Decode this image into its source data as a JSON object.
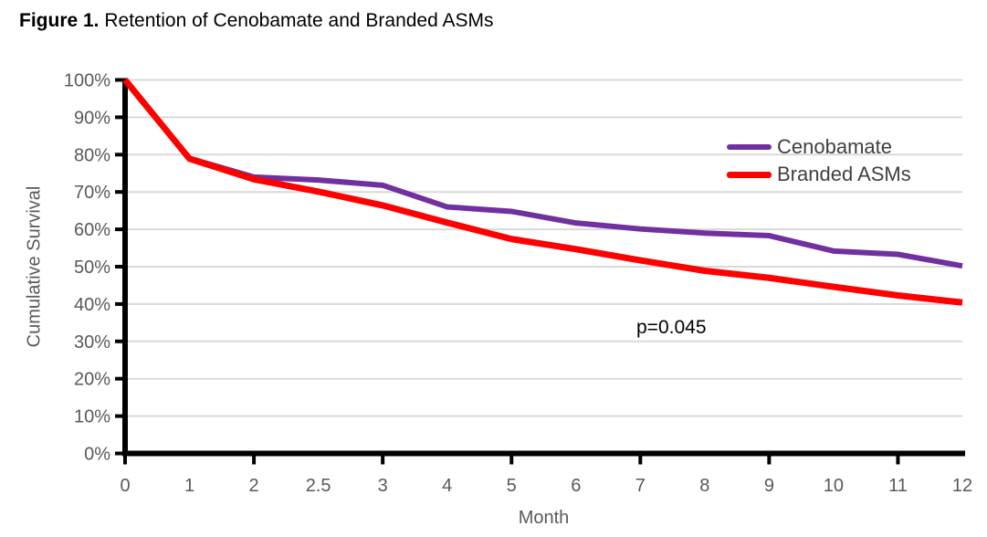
{
  "figure": {
    "label": "Figure 1.",
    "caption": " Retention of Cenobamate and Branded ASMs"
  },
  "chart_data": {
    "type": "line",
    "title": "Figure 1. Retention of Cenobamate and Branded ASMs",
    "xlabel": "Month",
    "ylabel": "Cumulative Survival",
    "categories": [
      "0",
      "1",
      "2",
      "2.5",
      "3",
      "4",
      "5",
      "6",
      "7",
      "8",
      "9",
      "10",
      "11",
      "12"
    ],
    "ylim": [
      0,
      100
    ],
    "y_tick_labels": [
      "0%",
      "10%",
      "20%",
      "30%",
      "40%",
      "50%",
      "60%",
      "70%",
      "80%",
      "90%",
      "100%"
    ],
    "x_axis_tick_mark_indices": [
      0,
      2,
      4,
      6,
      8,
      10,
      12
    ],
    "grid": "horizontal",
    "legend_position": "inside-top-right",
    "series": [
      {
        "name": "Cenobamate",
        "color": "#7030A0",
        "line_width": 6,
        "values": [
          100,
          79,
          74,
          73.2,
          71.8,
          66,
          64.8,
          61.7,
          60.1,
          59,
          58.3,
          54.2,
          53.3,
          50.2
        ]
      },
      {
        "name": "Branded ASMs",
        "color": "#FF0000",
        "line_width": 7,
        "values": [
          100,
          78.9,
          73.4,
          70.1,
          66.4,
          61.8,
          57.4,
          54.7,
          51.7,
          48.9,
          47,
          44.6,
          42.3,
          40.4
        ]
      }
    ],
    "annotations": [
      {
        "text": "p=0.045",
        "near_month": "7",
        "near_value": 33
      }
    ],
    "axis_color": "#000000",
    "grid_color": "#D9D9D9",
    "tick_label_color": "#595959",
    "legend_text_color": "#404040"
  }
}
